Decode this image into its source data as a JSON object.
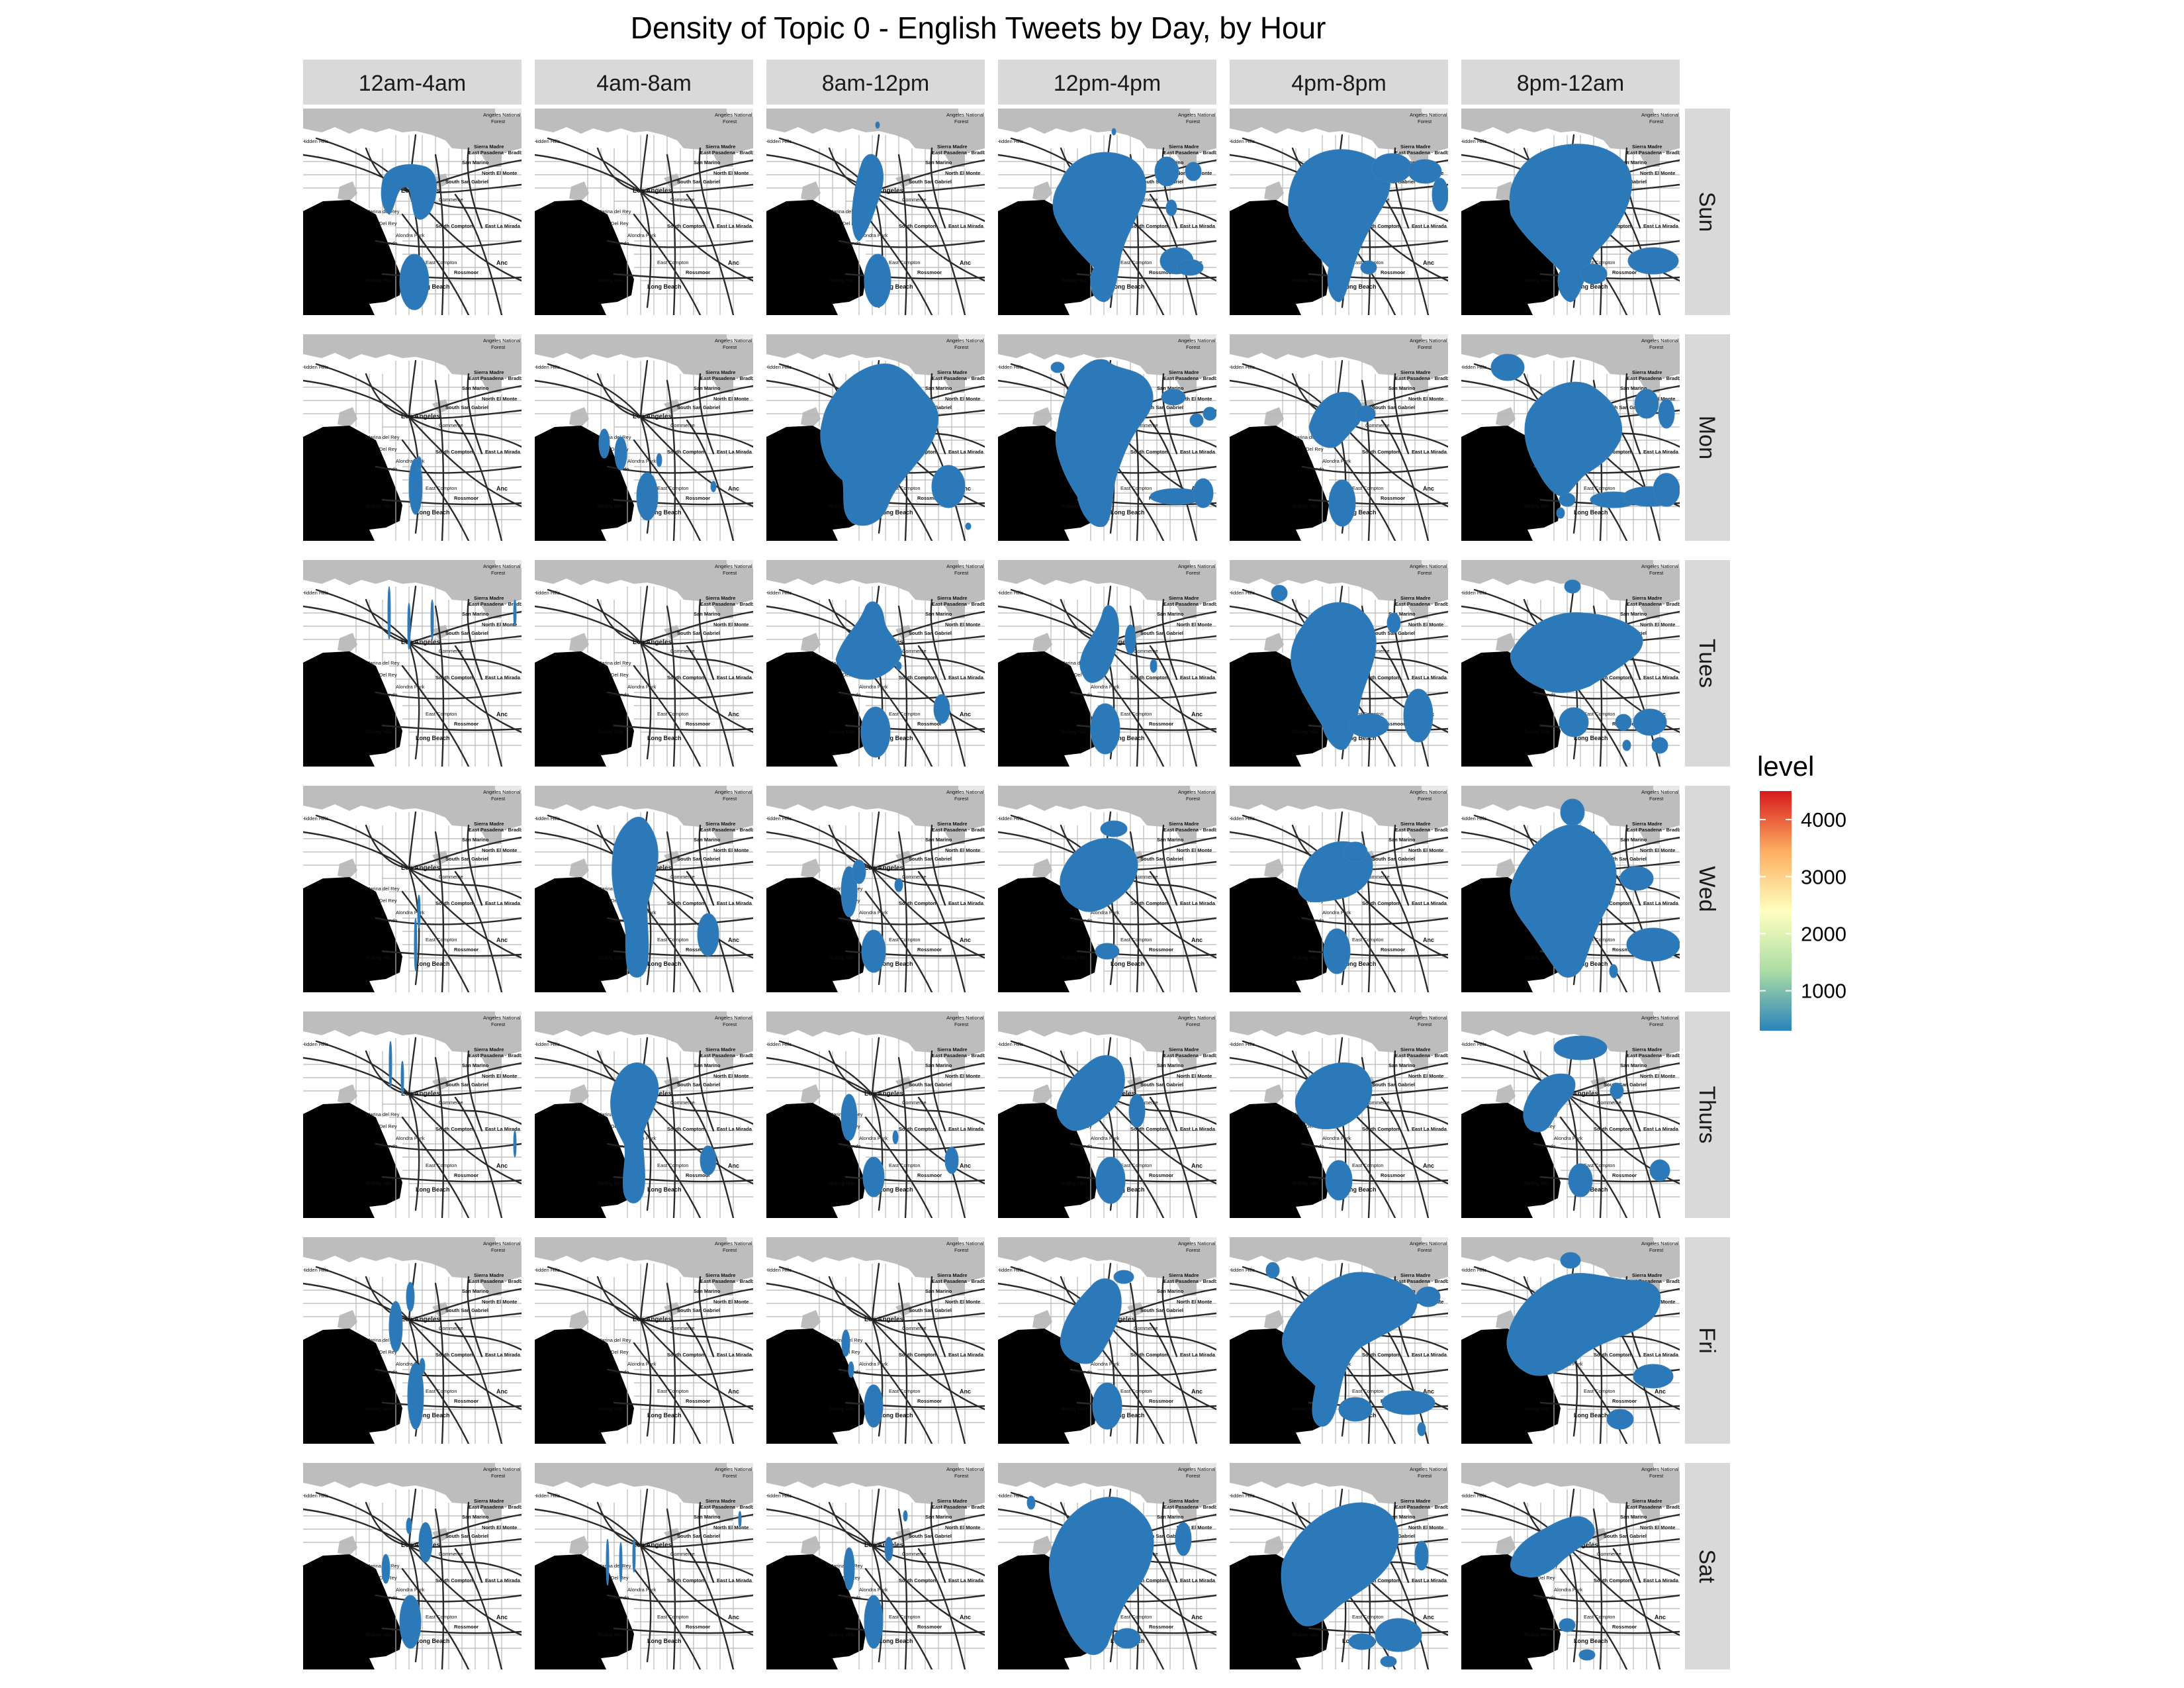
{
  "title": "Density of Topic 0 - English Tweets by Day, by Hour",
  "columns": [
    "12am-4am",
    "4am-8am",
    "8am-12pm",
    "12pm-4pm",
    "4pm-8pm",
    "8pm-12am"
  ],
  "rows": [
    "Sun",
    "Mon",
    "Tues",
    "Wed",
    "Thurs",
    "Fri",
    "Sat"
  ],
  "legend": {
    "title": "level",
    "ticks": [
      "1000",
      "2000",
      "3000",
      "4000"
    ],
    "tick_values": [
      1000,
      2000,
      3000,
      4000
    ],
    "range": [
      300,
      4500
    ],
    "colors": [
      "#2b83ba",
      "#abdda4",
      "#ffffbf",
      "#fdae61",
      "#d7191c"
    ]
  },
  "map_labels": {
    "la": "Los Angeles",
    "sierra_madre": "Sierra Madre",
    "pasadena": "East Pasadena · Bradbury",
    "san_marino": "San Marino",
    "el_monte": "North El Monte",
    "san_gabriel": "South San Gabriel",
    "commerce": "Commerce",
    "south_gate": "South Gate",
    "lamirada": "East La Mirada",
    "compton": "East Compton",
    "long_beach": "Long Beach",
    "hidden_hills": "Hidden Hills",
    "rolling_hills": "Rolling Hills",
    "alondra": "Alondra Park",
    "del_rey": "Del Rey",
    "marina": "Marina del Rey",
    "rossmoor": "Rossmoor",
    "anaheim": "Anc",
    "angeles_forest": "Angeles National Forest"
  },
  "colors": {
    "ocean": "#000000",
    "land": "#ffffff",
    "mountain": "#bdbdbd",
    "road": "#2a2a2a",
    "street": "#b8b8b8",
    "density": "#2b79b8",
    "strip": "#d9d9d9"
  },
  "chart_data": {
    "type": "heatmap",
    "facet_columns": [
      "12am-4am",
      "4am-8am",
      "8am-12pm",
      "12pm-4pm",
      "4pm-8pm",
      "8pm-12am"
    ],
    "facet_rows": [
      "Sun",
      "Mon",
      "Tues",
      "Wed",
      "Thurs",
      "Fri",
      "Sat"
    ],
    "fill_variable": "level",
    "level_range": [
      300,
      4500
    ]
  }
}
